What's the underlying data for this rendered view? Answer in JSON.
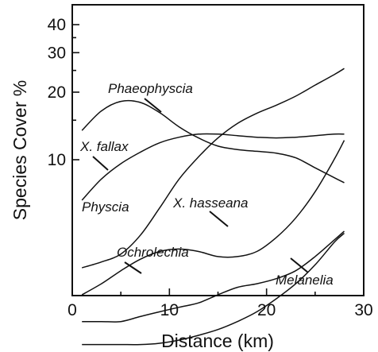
{
  "chart_data": {
    "type": "line",
    "title": "",
    "xlabel": "Distance (km)",
    "ylabel": "Species Cover %",
    "xlim": [
      0,
      30
    ],
    "ylim": [
      1.4,
      45
    ],
    "yscale": "log",
    "grid": false,
    "legend": "inline labels",
    "x_ticks": [
      {
        "value": 0,
        "label": "0"
      },
      {
        "value": 10,
        "label": "10"
      },
      {
        "value": 20,
        "label": "20"
      },
      {
        "value": 30,
        "label": "30"
      }
    ],
    "y_ticks": [
      {
        "value": 10,
        "label": "10"
      },
      {
        "value": 20,
        "label": "20"
      },
      {
        "value": 30,
        "label": "30"
      },
      {
        "value": 40,
        "label": "40"
      }
    ],
    "series": [
      {
        "name": "Phaeophyscia",
        "points": [
          [
            1,
            13.5
          ],
          [
            3,
            16.5
          ],
          [
            5,
            18.2
          ],
          [
            7,
            18
          ],
          [
            9,
            16.2
          ],
          [
            11,
            14
          ],
          [
            13,
            12.5
          ],
          [
            15,
            11.5
          ],
          [
            17,
            11.1
          ],
          [
            19,
            10.9
          ],
          [
            21,
            10.7
          ],
          [
            23,
            10.2
          ],
          [
            25,
            9.2
          ],
          [
            27,
            8.3
          ],
          [
            28,
            7.9
          ]
        ]
      },
      {
        "name": "X. fallax",
        "points": [
          [
            1,
            6.6
          ],
          [
            3,
            8.2
          ],
          [
            5,
            9.6
          ],
          [
            7,
            10.8
          ],
          [
            9,
            11.9
          ],
          [
            11,
            12.6
          ],
          [
            13,
            13
          ],
          [
            15,
            13
          ],
          [
            17,
            12.8
          ],
          [
            19,
            12.6
          ],
          [
            21,
            12.5
          ],
          [
            23,
            12.6
          ],
          [
            25,
            12.8
          ],
          [
            27,
            13
          ],
          [
            28,
            13
          ]
        ]
      },
      {
        "name": "Physcia",
        "points": [
          [
            1,
            3.3
          ],
          [
            3,
            3.5
          ],
          [
            5,
            3.8
          ],
          [
            7,
            4.6
          ],
          [
            9,
            6.1
          ],
          [
            11,
            8.2
          ],
          [
            13,
            10.3
          ],
          [
            15,
            12.5
          ],
          [
            17,
            14.5
          ],
          [
            19,
            16.1
          ],
          [
            21,
            17.5
          ],
          [
            23,
            19.2
          ],
          [
            25,
            21.5
          ],
          [
            27,
            24
          ],
          [
            28,
            25.5
          ]
        ]
      },
      {
        "name": "X. hasseana",
        "points": [
          [
            1,
            2.5
          ],
          [
            3,
            2.8
          ],
          [
            5,
            3.2
          ],
          [
            7,
            3.6
          ],
          [
            9,
            3.9
          ],
          [
            11,
            4.0
          ],
          [
            13,
            3.9
          ],
          [
            15,
            3.7
          ],
          [
            17,
            3.7
          ],
          [
            19,
            3.9
          ],
          [
            21,
            4.5
          ],
          [
            23,
            5.5
          ],
          [
            25,
            7.2
          ],
          [
            27,
            10.1
          ],
          [
            28,
            12.2
          ]
        ]
      },
      {
        "name": "Ochrolechia",
        "points": [
          [
            1,
            1.9
          ],
          [
            3,
            1.9
          ],
          [
            5,
            1.9
          ],
          [
            7,
            2.0
          ],
          [
            9,
            2.1
          ],
          [
            11,
            2.2
          ],
          [
            13,
            2.3
          ],
          [
            15,
            2.5
          ],
          [
            17,
            2.7
          ],
          [
            19,
            2.8
          ],
          [
            21,
            2.95
          ],
          [
            23,
            3.2
          ],
          [
            25,
            3.7
          ],
          [
            27,
            4.4
          ],
          [
            28,
            4.8
          ]
        ]
      },
      {
        "name": "Melanelia",
        "points": [
          [
            1,
            1.5
          ],
          [
            3,
            1.5
          ],
          [
            5,
            1.5
          ],
          [
            7,
            1.5
          ],
          [
            9,
            1.52
          ],
          [
            11,
            1.57
          ],
          [
            13,
            1.65
          ],
          [
            15,
            1.75
          ],
          [
            17,
            1.9
          ],
          [
            19,
            2.1
          ],
          [
            21,
            2.4
          ],
          [
            23,
            2.8
          ],
          [
            25,
            3.4
          ],
          [
            27,
            4.3
          ],
          [
            28,
            4.7
          ]
        ]
      }
    ],
    "annotations": [
      {
        "text": "Phaeophyscia",
        "series": "Phaeophyscia"
      },
      {
        "text": "X. fallax",
        "series": "X. fallax"
      },
      {
        "text": "Physcia",
        "series": "Physcia"
      },
      {
        "text": "X. hasseana",
        "series": "X. hasseana"
      },
      {
        "text": "Ochrolechia",
        "series": "Ochrolechia"
      },
      {
        "text": "Melanelia",
        "series": "Melanelia"
      }
    ]
  }
}
